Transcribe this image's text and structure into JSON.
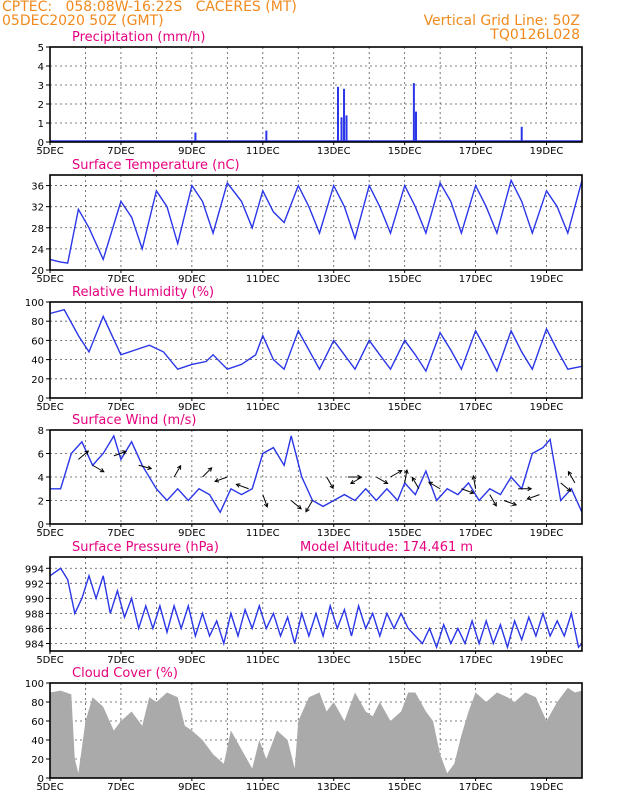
{
  "header": {
    "line1": "CPTEC:   058:08W-16:22S   CACERES (MT)",
    "line2": "05DEC2020 50Z (GMT)",
    "right1": "Vertical Grid Line: 50Z",
    "right2": "TQ0126L028"
  },
  "model_altitude_label": "Model Altitude: 174.461 m",
  "colors": {
    "series": "#2a36e8",
    "cloud": "#aaaaaa",
    "title": "#e6007e",
    "header": "#f08a1e"
  },
  "chart_data": [
    {
      "type": "bar",
      "title": "Precipitation (mm/h)",
      "x_labels": [
        "5DEC",
        "7DEC",
        "9DEC",
        "11DEC",
        "13DEC",
        "15DEC",
        "17DEC",
        "19DEC"
      ],
      "x_range_days": [
        5,
        20
      ],
      "ylim": [
        0,
        5
      ],
      "yticks": [
        "0",
        "1",
        "2",
        "3",
        "4",
        "5"
      ],
      "grid": true,
      "points": [
        [
          9.1,
          0.5
        ],
        [
          11.1,
          0.6
        ],
        [
          13.12,
          2.9
        ],
        [
          13.22,
          1.3
        ],
        [
          13.29,
          2.8
        ],
        [
          13.36,
          1.4
        ],
        [
          15.26,
          3.1
        ],
        [
          15.32,
          1.6
        ],
        [
          18.3,
          0.8
        ]
      ]
    },
    {
      "type": "line",
      "title": "Surface Temperature (nC)",
      "x_labels": [
        "5DEC",
        "7DEC",
        "9DEC",
        "11DEC",
        "13DEC",
        "15DEC",
        "17DEC",
        "19DEC"
      ],
      "ylim": [
        20,
        38
      ],
      "yticks": [
        "20",
        "24",
        "28",
        "32",
        "36"
      ],
      "grid": true,
      "points": [
        [
          5.0,
          22
        ],
        [
          5.3,
          21.5
        ],
        [
          5.5,
          21.3
        ],
        [
          5.8,
          31.5
        ],
        [
          6.1,
          28
        ],
        [
          6.5,
          22
        ],
        [
          7.0,
          33
        ],
        [
          7.3,
          30
        ],
        [
          7.6,
          24
        ],
        [
          8.0,
          35
        ],
        [
          8.3,
          32
        ],
        [
          8.6,
          25
        ],
        [
          9.0,
          36
        ],
        [
          9.3,
          33
        ],
        [
          9.6,
          27
        ],
        [
          10.0,
          36.5
        ],
        [
          10.4,
          33
        ],
        [
          10.7,
          28
        ],
        [
          11.0,
          35
        ],
        [
          11.3,
          31
        ],
        [
          11.6,
          29
        ],
        [
          12.0,
          36
        ],
        [
          12.3,
          32
        ],
        [
          12.6,
          27
        ],
        [
          13.0,
          36
        ],
        [
          13.3,
          32
        ],
        [
          13.6,
          26
        ],
        [
          14.0,
          36
        ],
        [
          14.3,
          32
        ],
        [
          14.6,
          27
        ],
        [
          15.0,
          36
        ],
        [
          15.3,
          32
        ],
        [
          15.6,
          27
        ],
        [
          16.0,
          36.5
        ],
        [
          16.3,
          33
        ],
        [
          16.6,
          27
        ],
        [
          17.0,
          36
        ],
        [
          17.3,
          32
        ],
        [
          17.6,
          27
        ],
        [
          18.0,
          37
        ],
        [
          18.3,
          33
        ],
        [
          18.6,
          27
        ],
        [
          19.0,
          35
        ],
        [
          19.3,
          32
        ],
        [
          19.6,
          27
        ],
        [
          20.0,
          37
        ]
      ]
    },
    {
      "type": "line",
      "title": "Relative Humidity (%)",
      "x_labels": [
        "5DEC",
        "7DEC",
        "9DEC",
        "11DEC",
        "13DEC",
        "15DEC",
        "17DEC",
        "19DEC"
      ],
      "ylim": [
        0,
        100
      ],
      "yticks": [
        "0",
        "20",
        "40",
        "60",
        "80",
        "100"
      ],
      "grid": true,
      "points": [
        [
          5.0,
          88
        ],
        [
          5.4,
          92
        ],
        [
          5.8,
          65
        ],
        [
          6.1,
          48
        ],
        [
          6.5,
          85
        ],
        [
          7.0,
          45
        ],
        [
          7.4,
          50
        ],
        [
          7.8,
          55
        ],
        [
          8.2,
          48
        ],
        [
          8.6,
          30
        ],
        [
          9.0,
          35
        ],
        [
          9.4,
          38
        ],
        [
          9.6,
          45
        ],
        [
          10.0,
          30
        ],
        [
          10.4,
          35
        ],
        [
          10.8,
          45
        ],
        [
          11.0,
          65
        ],
        [
          11.3,
          40
        ],
        [
          11.6,
          30
        ],
        [
          12.0,
          70
        ],
        [
          12.3,
          50
        ],
        [
          12.6,
          30
        ],
        [
          13.0,
          60
        ],
        [
          13.3,
          45
        ],
        [
          13.6,
          30
        ],
        [
          14.0,
          60
        ],
        [
          14.3,
          45
        ],
        [
          14.6,
          30
        ],
        [
          15.0,
          60
        ],
        [
          15.3,
          45
        ],
        [
          15.6,
          28
        ],
        [
          16.0,
          68
        ],
        [
          16.3,
          50
        ],
        [
          16.6,
          30
        ],
        [
          17.0,
          70
        ],
        [
          17.3,
          50
        ],
        [
          17.6,
          28
        ],
        [
          18.0,
          70
        ],
        [
          18.3,
          48
        ],
        [
          18.6,
          30
        ],
        [
          19.0,
          72
        ],
        [
          19.3,
          50
        ],
        [
          19.6,
          30
        ],
        [
          20.0,
          33
        ]
      ]
    },
    {
      "type": "line",
      "title": "Surface Wind (m/s)",
      "x_labels": [
        "5DEC",
        "7DEC",
        "9DEC",
        "11DEC",
        "13DEC",
        "15DEC",
        "17DEC",
        "19DEC"
      ],
      "ylim": [
        0,
        8
      ],
      "yticks": [
        "0",
        "2",
        "4",
        "6",
        "8"
      ],
      "grid": true,
      "points": [
        [
          5.0,
          3
        ],
        [
          5.3,
          3
        ],
        [
          5.6,
          6
        ],
        [
          5.9,
          7
        ],
        [
          6.2,
          5
        ],
        [
          6.5,
          6
        ],
        [
          6.8,
          7.5
        ],
        [
          7.0,
          5.5
        ],
        [
          7.3,
          7
        ],
        [
          7.6,
          5
        ],
        [
          8.0,
          3
        ],
        [
          8.3,
          2
        ],
        [
          8.6,
          3
        ],
        [
          8.9,
          2
        ],
        [
          9.2,
          3
        ],
        [
          9.5,
          2.5
        ],
        [
          9.8,
          1
        ],
        [
          10.1,
          3
        ],
        [
          10.4,
          2.5
        ],
        [
          10.7,
          3
        ],
        [
          11.0,
          6
        ],
        [
          11.3,
          6.5
        ],
        [
          11.6,
          5
        ],
        [
          11.8,
          7.5
        ],
        [
          12.1,
          4
        ],
        [
          12.4,
          2
        ],
        [
          12.7,
          1.5
        ],
        [
          13.0,
          2
        ],
        [
          13.3,
          2.5
        ],
        [
          13.6,
          2
        ],
        [
          13.9,
          3
        ],
        [
          14.2,
          2
        ],
        [
          14.5,
          3
        ],
        [
          14.8,
          2
        ],
        [
          15.0,
          3.5
        ],
        [
          15.3,
          2.5
        ],
        [
          15.6,
          4.5
        ],
        [
          15.9,
          2
        ],
        [
          16.2,
          3
        ],
        [
          16.5,
          2.5
        ],
        [
          16.8,
          3.5
        ],
        [
          17.1,
          2
        ],
        [
          17.4,
          3
        ],
        [
          17.7,
          2.5
        ],
        [
          18.0,
          4
        ],
        [
          18.3,
          3
        ],
        [
          18.6,
          6
        ],
        [
          18.9,
          6.5
        ],
        [
          19.1,
          7.2
        ],
        [
          19.4,
          2
        ],
        [
          19.7,
          3
        ],
        [
          20.0,
          1
        ]
      ],
      "arrows": [
        [
          5.8,
          5.5,
          40
        ],
        [
          6.2,
          5.0,
          -30
        ],
        [
          6.8,
          5.8,
          20
        ],
        [
          7.5,
          5.0,
          -15
        ],
        [
          8.5,
          4.0,
          60
        ],
        [
          9.3,
          4.0,
          45
        ],
        [
          10.0,
          4.0,
          200
        ],
        [
          10.6,
          3.0,
          160
        ],
        [
          11.0,
          2.5,
          -70
        ],
        [
          11.8,
          2.0,
          -40
        ],
        [
          12.4,
          2.0,
          -120
        ],
        [
          12.8,
          4.0,
          -60
        ],
        [
          13.4,
          4.0,
          0
        ],
        [
          13.8,
          4.0,
          210
        ],
        [
          14.2,
          4.0,
          -30
        ],
        [
          14.6,
          4.0,
          30
        ],
        [
          15.0,
          3.5,
          80
        ],
        [
          15.4,
          3.0,
          120
        ],
        [
          16.0,
          3.0,
          150
        ],
        [
          16.6,
          3.0,
          -20
        ],
        [
          17.0,
          3.0,
          100
        ],
        [
          17.4,
          2.5,
          -60
        ],
        [
          17.8,
          2.0,
          -20
        ],
        [
          18.2,
          3.0,
          0
        ],
        [
          18.8,
          2.5,
          200
        ],
        [
          19.4,
          3.5,
          -40
        ],
        [
          19.8,
          3.5,
          120
        ]
      ]
    },
    {
      "type": "line",
      "title": "Surface Pressure (hPa)",
      "x_labels": [
        "5DEC",
        "7DEC",
        "9DEC",
        "11DEC",
        "13DEC",
        "15DEC",
        "17DEC",
        "19DEC"
      ],
      "ylim": [
        983,
        995.5
      ],
      "yticks": [
        "984",
        "986",
        "988",
        "990",
        "992",
        "994"
      ],
      "grid": true,
      "points": [
        [
          5.0,
          993
        ],
        [
          5.3,
          994
        ],
        [
          5.5,
          992.5
        ],
        [
          5.7,
          988
        ],
        [
          5.9,
          990
        ],
        [
          6.1,
          993
        ],
        [
          6.3,
          990
        ],
        [
          6.5,
          993
        ],
        [
          6.7,
          988
        ],
        [
          6.9,
          991
        ],
        [
          7.1,
          987.5
        ],
        [
          7.3,
          990
        ],
        [
          7.5,
          986
        ],
        [
          7.7,
          989
        ],
        [
          7.9,
          986
        ],
        [
          8.1,
          989
        ],
        [
          8.3,
          985.5
        ],
        [
          8.5,
          989
        ],
        [
          8.7,
          986
        ],
        [
          8.9,
          989
        ],
        [
          9.1,
          985
        ],
        [
          9.3,
          988
        ],
        [
          9.5,
          985
        ],
        [
          9.7,
          987
        ],
        [
          9.9,
          984
        ],
        [
          10.1,
          988
        ],
        [
          10.3,
          985
        ],
        [
          10.5,
          988.5
        ],
        [
          10.7,
          986
        ],
        [
          10.9,
          989
        ],
        [
          11.1,
          986
        ],
        [
          11.3,
          988
        ],
        [
          11.5,
          985
        ],
        [
          11.7,
          987.5
        ],
        [
          11.9,
          984
        ],
        [
          12.1,
          988
        ],
        [
          12.3,
          985
        ],
        [
          12.5,
          988
        ],
        [
          12.7,
          985
        ],
        [
          12.9,
          989
        ],
        [
          13.1,
          986
        ],
        [
          13.3,
          988.5
        ],
        [
          13.5,
          985
        ],
        [
          13.7,
          989
        ],
        [
          13.9,
          986
        ],
        [
          14.1,
          988
        ],
        [
          14.3,
          985
        ],
        [
          14.5,
          988
        ],
        [
          14.7,
          986
        ],
        [
          14.9,
          988
        ],
        [
          15.1,
          986
        ],
        [
          15.3,
          985
        ],
        [
          15.5,
          984
        ],
        [
          15.7,
          986
        ],
        [
          15.9,
          983.5
        ],
        [
          16.1,
          986.5
        ],
        [
          16.3,
          984
        ],
        [
          16.5,
          986
        ],
        [
          16.7,
          984
        ],
        [
          16.9,
          987
        ],
        [
          17.1,
          984
        ],
        [
          17.3,
          987
        ],
        [
          17.5,
          984
        ],
        [
          17.7,
          986.5
        ],
        [
          17.9,
          983.5
        ],
        [
          18.1,
          987
        ],
        [
          18.3,
          984.5
        ],
        [
          18.5,
          987.5
        ],
        [
          18.7,
          985
        ],
        [
          18.9,
          988
        ],
        [
          19.1,
          985
        ],
        [
          19.3,
          987
        ],
        [
          19.5,
          985
        ],
        [
          19.7,
          988
        ],
        [
          19.9,
          983.5
        ],
        [
          20.0,
          984
        ]
      ]
    },
    {
      "type": "area",
      "title": "Cloud Cover (%)",
      "x_labels": [
        "5DEC",
        "7DEC",
        "9DEC",
        "11DEC",
        "13DEC",
        "15DEC",
        "17DEC",
        "19DEC"
      ],
      "ylim": [
        0,
        100
      ],
      "yticks": [
        "0",
        "20",
        "40",
        "60",
        "80",
        "100"
      ],
      "grid": true,
      "points": [
        [
          5.0,
          90
        ],
        [
          5.3,
          92
        ],
        [
          5.6,
          88
        ],
        [
          5.7,
          20
        ],
        [
          5.8,
          5
        ],
        [
          6.0,
          60
        ],
        [
          6.2,
          85
        ],
        [
          6.5,
          75
        ],
        [
          6.8,
          50
        ],
        [
          7.0,
          60
        ],
        [
          7.3,
          70
        ],
        [
          7.6,
          55
        ],
        [
          7.8,
          85
        ],
        [
          8.0,
          80
        ],
        [
          8.3,
          90
        ],
        [
          8.6,
          85
        ],
        [
          8.8,
          55
        ],
        [
          9.0,
          50
        ],
        [
          9.3,
          40
        ],
        [
          9.6,
          25
        ],
        [
          9.9,
          15
        ],
        [
          10.1,
          50
        ],
        [
          10.4,
          30
        ],
        [
          10.7,
          10
        ],
        [
          10.9,
          40
        ],
        [
          11.1,
          20
        ],
        [
          11.4,
          50
        ],
        [
          11.7,
          40
        ],
        [
          11.9,
          10
        ],
        [
          12.0,
          60
        ],
        [
          12.3,
          85
        ],
        [
          12.6,
          90
        ],
        [
          12.8,
          70
        ],
        [
          13.0,
          80
        ],
        [
          13.3,
          60
        ],
        [
          13.6,
          90
        ],
        [
          13.9,
          70
        ],
        [
          14.1,
          65
        ],
        [
          14.3,
          80
        ],
        [
          14.6,
          60
        ],
        [
          14.9,
          70
        ],
        [
          15.1,
          90
        ],
        [
          15.3,
          90
        ],
        [
          15.6,
          70
        ],
        [
          15.8,
          60
        ],
        [
          16.0,
          25
        ],
        [
          16.2,
          5
        ],
        [
          16.4,
          15
        ],
        [
          16.6,
          45
        ],
        [
          16.8,
          70
        ],
        [
          17.0,
          90
        ],
        [
          17.3,
          80
        ],
        [
          17.6,
          90
        ],
        [
          17.9,
          85
        ],
        [
          18.1,
          80
        ],
        [
          18.4,
          90
        ],
        [
          18.7,
          85
        ],
        [
          19.0,
          60
        ],
        [
          19.3,
          80
        ],
        [
          19.6,
          95
        ],
        [
          19.8,
          90
        ],
        [
          20.0,
          92
        ]
      ]
    }
  ]
}
